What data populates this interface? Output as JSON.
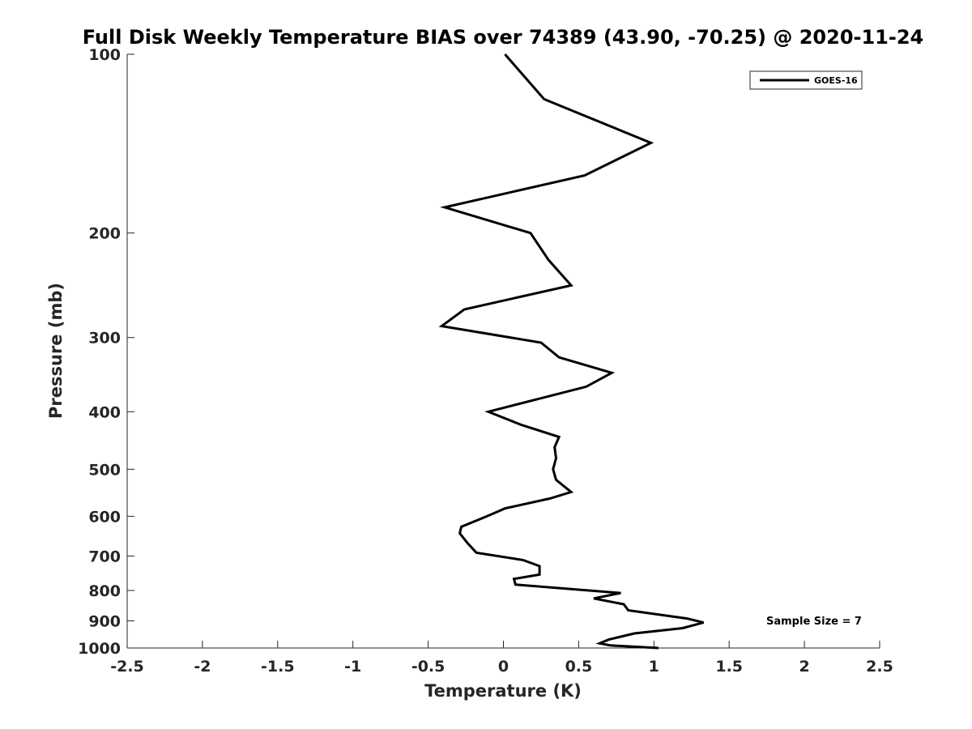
{
  "chart_data": {
    "type": "line",
    "title": "Full Disk Weekly Temperature BIAS over 74389 (43.90, -70.25) @ 2020-11-24",
    "xlabel": "Temperature (K)",
    "ylabel": "Pressure (mb)",
    "xlim": [
      -2.5,
      2.5
    ],
    "ylim": [
      100,
      1000
    ],
    "yscale": "log",
    "yreversed": true,
    "grid": false,
    "x_ticks": [
      -2.5,
      -2,
      -1.5,
      -1,
      -0.5,
      0,
      0.5,
      1,
      1.5,
      2,
      2.5
    ],
    "x_tick_labels": [
      "-2.5",
      "-2",
      "-1.5",
      "-1",
      "-0.5",
      "0",
      "0.5",
      "1",
      "1.5",
      "2",
      "2.5"
    ],
    "y_ticks": [
      100,
      200,
      300,
      400,
      500,
      600,
      700,
      800,
      900,
      1000
    ],
    "y_tick_labels": [
      "100",
      "200",
      "300",
      "400",
      "500",
      "600",
      "700",
      "800",
      "900",
      "1000"
    ],
    "legend": {
      "position": "top-right",
      "entries": [
        "GOES-16"
      ]
    },
    "annotations": [
      "Sample Size = 7"
    ],
    "series": [
      {
        "name": "GOES-16",
        "color": "#000000",
        "points": [
          [
            0.01,
            100
          ],
          [
            0.27,
            119
          ],
          [
            0.98,
            141
          ],
          [
            0.54,
            160
          ],
          [
            -0.39,
            181
          ],
          [
            0.18,
            200
          ],
          [
            0.3,
            222
          ],
          [
            0.45,
            245
          ],
          [
            -0.26,
            269
          ],
          [
            -0.41,
            287
          ],
          [
            0.25,
            306
          ],
          [
            0.37,
            324
          ],
          [
            0.72,
            344
          ],
          [
            0.55,
            363
          ],
          [
            -0.1,
            400
          ],
          [
            0.12,
            421
          ],
          [
            0.37,
            441
          ],
          [
            0.34,
            459
          ],
          [
            0.35,
            479
          ],
          [
            0.33,
            500
          ],
          [
            0.35,
            521
          ],
          [
            0.45,
            546
          ],
          [
            0.31,
            560
          ],
          [
            0.01,
            582
          ],
          [
            -0.11,
            600
          ],
          [
            -0.28,
            625
          ],
          [
            -0.29,
            641
          ],
          [
            -0.24,
            665
          ],
          [
            -0.18,
            691
          ],
          [
            0.13,
            711
          ],
          [
            0.24,
            728
          ],
          [
            0.24,
            752
          ],
          [
            0.07,
            765
          ],
          [
            0.08,
            782
          ],
          [
            0.78,
            808
          ],
          [
            0.6,
            825
          ],
          [
            0.8,
            844
          ],
          [
            0.83,
            864
          ],
          [
            1.22,
            892
          ],
          [
            1.33,
            906
          ],
          [
            1.19,
            926
          ],
          [
            0.87,
            945
          ],
          [
            0.7,
            968
          ],
          [
            0.64,
            982
          ],
          [
            0.71,
            990
          ],
          [
            1.03,
            1000
          ]
        ]
      }
    ]
  }
}
